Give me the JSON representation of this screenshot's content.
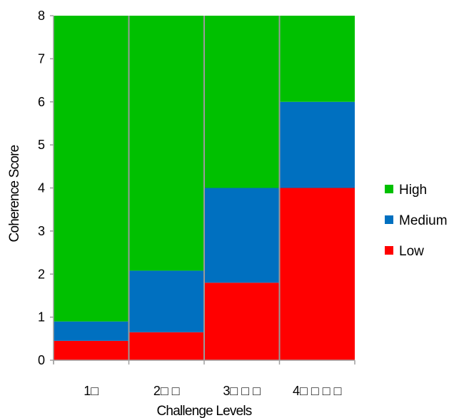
{
  "chart_data": {
    "type": "bar",
    "stacked": true,
    "categories": [
      "1□",
      "2□ □",
      "3□ □ □",
      "4□ □ □ □"
    ],
    "series": [
      {
        "name": "Low",
        "color": "#ff0000",
        "values": [
          0.45,
          0.65,
          1.8,
          4.0
        ]
      },
      {
        "name": "Medium",
        "color": "#0070c0",
        "values": [
          0.45,
          1.43,
          2.2,
          2.0
        ]
      },
      {
        "name": "High",
        "color": "#00c000",
        "values": [
          7.1,
          5.92,
          4.0,
          2.0
        ]
      }
    ],
    "legend_order": [
      "High",
      "Medium",
      "Low"
    ],
    "xlabel": "Challenge Levels",
    "ylabel": "Coherence Score",
    "ylim": [
      0,
      8
    ],
    "yticks": [
      0,
      1,
      2,
      3,
      4,
      5,
      6,
      7,
      8
    ],
    "grid": false,
    "legend_position": "right"
  }
}
